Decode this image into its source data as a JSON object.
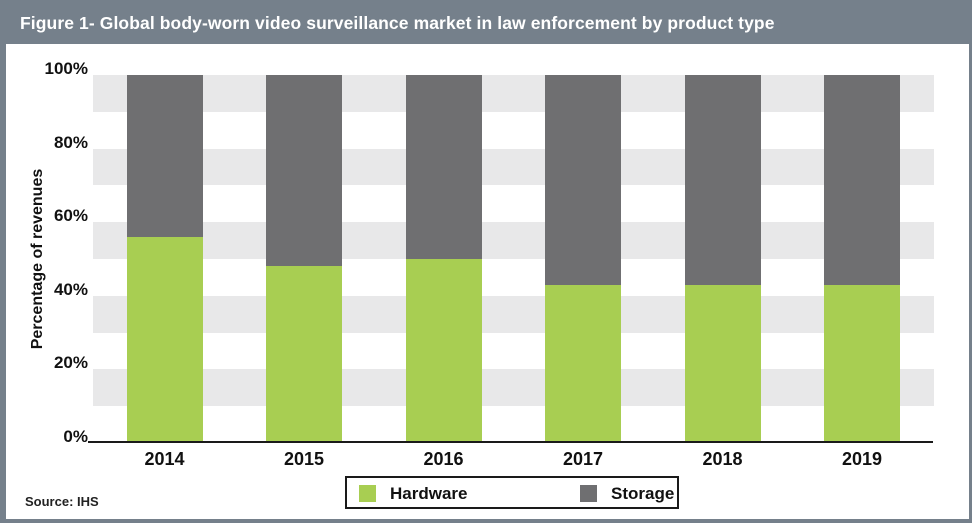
{
  "header": {
    "title": "Figure 1- Global body-worn video surveillance market in law enforcement by product type"
  },
  "chart_data": {
    "type": "bar",
    "stacked": true,
    "title": "Figure 1- Global body-worn video surveillance market in law enforcement by product type",
    "categories": [
      "2014",
      "2015",
      "2016",
      "2017",
      "2018",
      "2019"
    ],
    "series": [
      {
        "name": "Hardware",
        "color": "#a8ce52",
        "values": [
          56,
          48,
          50,
          43,
          43,
          43
        ]
      },
      {
        "name": "Storage",
        "color": "#6f6f71",
        "values": [
          44,
          52,
          50,
          57,
          57,
          57
        ]
      }
    ],
    "xlabel": "",
    "ylabel": "Percentage of revenues",
    "ylim": [
      0,
      100
    ],
    "ytick_step": 20,
    "ytick_labels": [
      "0%",
      "20%",
      "40%",
      "60%",
      "80%",
      "100%"
    ],
    "units": "percent",
    "grid": "horizontal-bands",
    "legend_position": "bottom-center"
  },
  "colors": {
    "header_bg": "#75808b",
    "frame_border": "#75808b",
    "band_gray": "#e8e8e9",
    "band_white": "#ffffff",
    "axis_line": "#1a1a1a",
    "text": "#111111"
  },
  "source": {
    "label": "Source: IHS"
  }
}
